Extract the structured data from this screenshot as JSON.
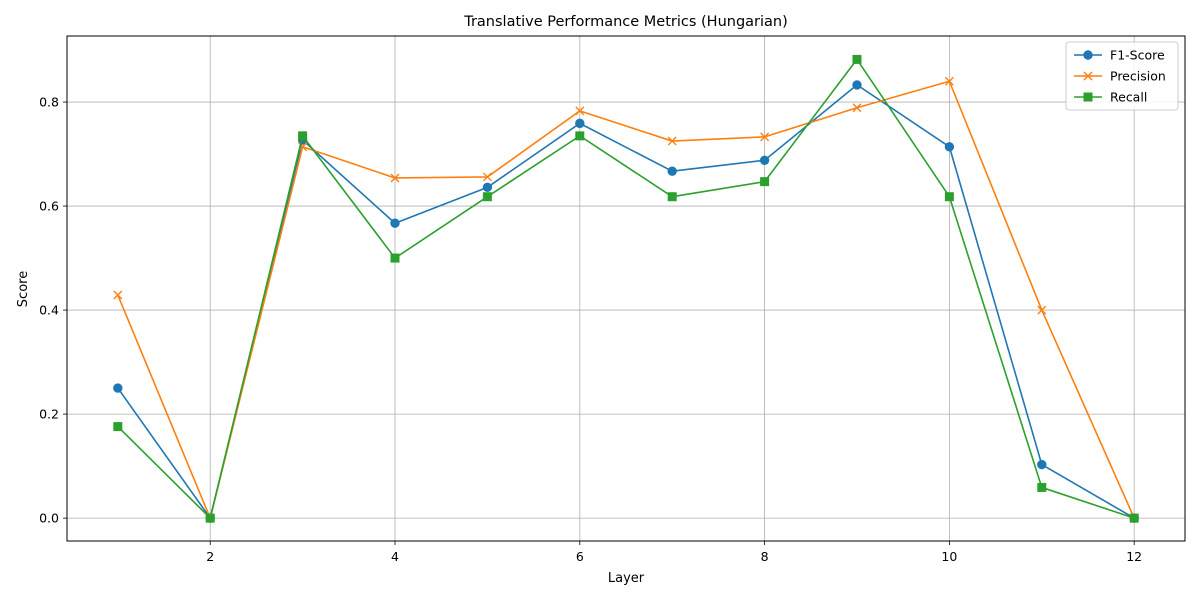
{
  "chart_data": {
    "type": "line",
    "title": "Translative Performance Metrics (Hungarian)",
    "xlabel": "Layer",
    "ylabel": "Score",
    "xlim": [
      0.45,
      12.55
    ],
    "ylim": [
      -0.044,
      0.927
    ],
    "xticks": [
      2,
      4,
      6,
      8,
      10,
      12
    ],
    "yticks": [
      0.0,
      0.2,
      0.4,
      0.6,
      0.8
    ],
    "xtick_labels": [
      "2",
      "4",
      "6",
      "8",
      "10",
      "12"
    ],
    "ytick_labels": [
      "0.0",
      "0.2",
      "0.4",
      "0.6",
      "0.8"
    ],
    "grid": true,
    "legend_position": "upper right",
    "x": [
      1,
      2,
      3,
      4,
      5,
      6,
      7,
      8,
      9,
      10,
      11,
      12
    ],
    "series": [
      {
        "name": "F1-Score",
        "color": "#1f77b4",
        "marker": "circle",
        "values": [
          0.25,
          0.0,
          0.727,
          0.567,
          0.636,
          0.759,
          0.667,
          0.688,
          0.833,
          0.714,
          0.103,
          0.0
        ]
      },
      {
        "name": "Precision",
        "color": "#ff7f0e",
        "marker": "x",
        "values": [
          0.429,
          0.0,
          0.714,
          0.654,
          0.656,
          0.783,
          0.725,
          0.733,
          0.789,
          0.84,
          0.4,
          0.0
        ]
      },
      {
        "name": "Recall",
        "color": "#2ca02c",
        "marker": "square",
        "values": [
          0.176,
          0.0,
          0.735,
          0.5,
          0.618,
          0.735,
          0.618,
          0.647,
          0.882,
          0.618,
          0.059,
          0.0
        ]
      }
    ]
  }
}
